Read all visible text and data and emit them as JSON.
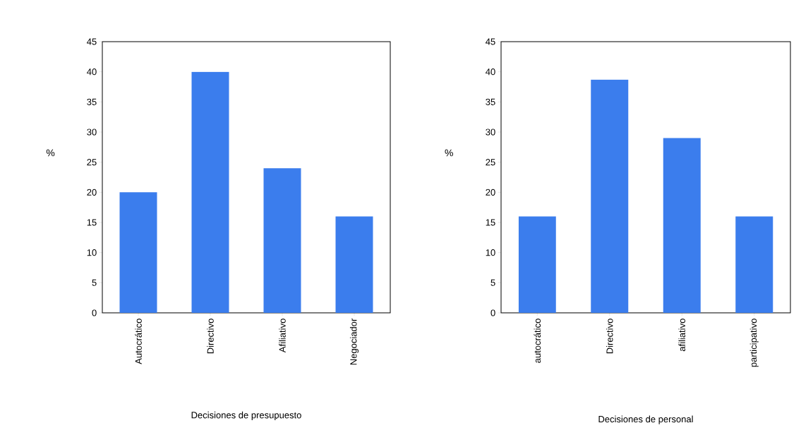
{
  "chart_data": [
    {
      "type": "bar",
      "categories": [
        "Autocrático",
        "Directivo",
        "Afiliativo",
        "Negociador"
      ],
      "values": [
        20,
        40,
        24,
        16
      ],
      "color": "#3b7ded",
      "xlabel": "Decisiones de presupuesto",
      "ylabel": "%",
      "ylim": [
        0,
        45
      ],
      "yticks": [
        0,
        5,
        10,
        15,
        20,
        25,
        30,
        35,
        40,
        45
      ]
    },
    {
      "type": "bar",
      "categories": [
        "autocrático",
        "Directivo",
        "afiliativo",
        "participativo"
      ],
      "values": [
        16,
        38.7,
        29,
        16
      ],
      "color": "#3b7ded",
      "xlabel": "Decisiones de personal",
      "ylabel": "%",
      "ylim": [
        0,
        45
      ],
      "yticks": [
        0,
        5,
        10,
        15,
        20,
        25,
        30,
        35,
        40,
        45
      ]
    }
  ]
}
